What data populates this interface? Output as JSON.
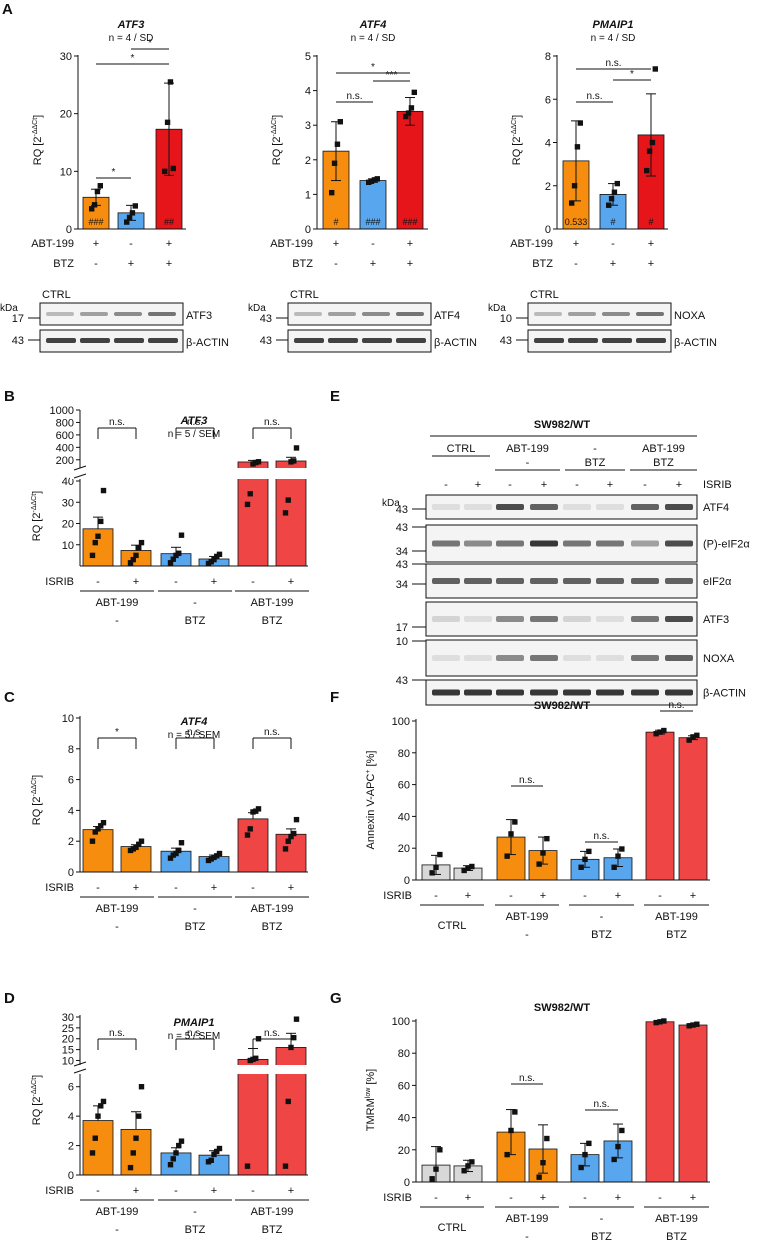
{
  "colors": {
    "orange": "#f78d0f",
    "blue": "#58a6ee",
    "red": "#f04545",
    "red_dark": "#e6151a",
    "grey": "#d8d8d8",
    "ink": "#111111"
  },
  "texts": {
    "panel_A": "A",
    "panel_B": "B",
    "panel_C": "C",
    "panel_D": "D",
    "panel_E": "E",
    "panel_F": "F",
    "panel_G": "G",
    "ylabel_rq": "RQ [2-ΔΔCt]",
    "ylabel_annexin": "Annexin V-APC+ [%]",
    "ylabel_tmrm": "TMRMlow [%]",
    "abt199": "ABT-199",
    "btz": "BTZ",
    "isrib": "ISRIB",
    "ctrl": "CTRL",
    "dash": "-",
    "plus": "+",
    "sw982": "SW982/WT",
    "kda": "kDa",
    "beta_actin": "β-ACTIN",
    "ns": "n.s.",
    "star": "*",
    "triple_star": "***",
    "hash1": "#",
    "hash2": "##",
    "hash3": "###",
    "p_0533": "0.533"
  },
  "blots_A": [
    {
      "ctrl": "CTRL",
      "mw_top": "17",
      "mw_actin": "43",
      "target": "ATF3",
      "actin": "β-ACTIN",
      "kda": "kDa"
    },
    {
      "ctrl": "CTRL",
      "mw_top": "43",
      "mw_actin": "43",
      "target": "ATF4",
      "actin": "β-ACTIN",
      "kda": "kDa"
    },
    {
      "ctrl": "CTRL",
      "mw_top": "10",
      "mw_actin": "43",
      "target": "NOXA",
      "actin": "β-ACTIN",
      "kda": "kDa"
    }
  ],
  "blot_E": {
    "title": "SW982/WT",
    "groups": [
      {
        "top": "CTRL",
        "bottom": ""
      },
      {
        "top": "ABT-199",
        "bottom": "-"
      },
      {
        "top": "-",
        "bottom": "BTZ"
      },
      {
        "top": "ABT-199",
        "bottom": "BTZ"
      }
    ],
    "isrib": [
      "-",
      "+",
      "-",
      "+",
      "-",
      "+",
      "-",
      "+"
    ],
    "isrib_label": "ISRIB",
    "kda": "kDa",
    "rows": [
      {
        "label": "ATF4",
        "markers": [
          "43"
        ]
      },
      {
        "label": "(P)-eIF2α",
        "markers": [
          "43",
          "34"
        ]
      },
      {
        "label": "eIF2α",
        "markers": [
          "43",
          "34"
        ]
      },
      {
        "label": "ATF3",
        "markers": [
          "17"
        ]
      },
      {
        "label": "NOXA",
        "markers": [
          "10"
        ]
      },
      {
        "label": "β-ACTIN",
        "markers": [
          "43"
        ]
      }
    ]
  },
  "chart_data": [
    {
      "type": "bar",
      "panel": "A",
      "title": "ATF3",
      "subtitle": "n = 4 / SD",
      "ylabel": "RQ [2-ΔΔCt]",
      "ylim": [
        0,
        30
      ],
      "yticks": [
        0,
        10,
        20,
        30
      ],
      "row_labels": [
        "ABT-199",
        "BTZ"
      ],
      "conditions": [
        [
          "+",
          "-"
        ],
        [
          "-",
          "+"
        ],
        [
          "+",
          "+"
        ]
      ],
      "values": [
        5.5,
        2.8,
        17.3
      ],
      "errors": [
        1.4,
        1.3,
        8.0
      ],
      "points": [
        [
          3.5,
          4.2,
          6.5,
          7.5
        ],
        [
          1.2,
          2.0,
          2.8,
          4.0
        ],
        [
          10.0,
          18.5,
          25.5,
          10.5
        ]
      ],
      "labels_in_bar": [
        "###",
        "",
        "##"
      ],
      "significance": [
        {
          "from": 0,
          "to": 1,
          "label": "*"
        },
        {
          "from": 0,
          "to": 2,
          "label": "*"
        },
        {
          "from": 1,
          "to": 2,
          "label": "*"
        }
      ]
    },
    {
      "type": "bar",
      "panel": "A",
      "title": "ATF4",
      "subtitle": "n = 4 / SD",
      "ylabel": "RQ [2-ΔΔCt]",
      "ylim": [
        0,
        5
      ],
      "yticks": [
        0,
        1,
        2,
        3,
        4,
        5
      ],
      "row_labels": [
        "ABT-199",
        "BTZ"
      ],
      "conditions": [
        [
          "+",
          "-"
        ],
        [
          "-",
          "+"
        ],
        [
          "+",
          "+"
        ]
      ],
      "values": [
        2.25,
        1.4,
        3.4
      ],
      "errors": [
        0.85,
        0.05,
        0.4
      ],
      "points": [
        [
          1.05,
          1.9,
          2.45,
          3.1
        ],
        [
          1.35,
          1.38,
          1.42,
          1.45
        ],
        [
          3.25,
          3.35,
          3.5,
          3.95
        ]
      ],
      "labels_in_bar": [
        "#",
        "###",
        "###"
      ],
      "significance": [
        {
          "from": 0,
          "to": 1,
          "label": "n.s."
        },
        {
          "from": 0,
          "to": 2,
          "label": "*"
        },
        {
          "from": 1,
          "to": 2,
          "label": "***"
        }
      ]
    },
    {
      "type": "bar",
      "panel": "A",
      "title": "PMAIP1",
      "subtitle": "n = 4 / SD",
      "ylabel": "RQ [2-ΔΔCt]",
      "ylim": [
        0,
        8
      ],
      "yticks": [
        0,
        2,
        4,
        6,
        8
      ],
      "row_labels": [
        "ABT-199",
        "BTZ"
      ],
      "conditions": [
        [
          "+",
          "-"
        ],
        [
          "-",
          "+"
        ],
        [
          "+",
          "+"
        ]
      ],
      "values": [
        3.15,
        1.6,
        4.35
      ],
      "errors": [
        1.85,
        0.5,
        1.9
      ],
      "points": [
        [
          1.2,
          2.0,
          3.8,
          4.9
        ],
        [
          1.1,
          1.4,
          1.7,
          2.1
        ],
        [
          2.7,
          3.6,
          4.0,
          7.4
        ]
      ],
      "labels_in_bar": [
        "0.533",
        "#",
        "#"
      ],
      "significance": [
        {
          "from": 0,
          "to": 1,
          "label": "n.s."
        },
        {
          "from": 0,
          "to": 2,
          "label": "n.s."
        },
        {
          "from": 1,
          "to": 2,
          "label": "*"
        }
      ]
    },
    {
      "type": "bar",
      "panel": "B",
      "title": "ATF3",
      "subtitle": "n = 5 / SEM",
      "ylabel": "RQ [2-ΔΔCt]",
      "ylim": [
        0,
        1000
      ],
      "axis_break": [
        40,
        100
      ],
      "yticks": [
        10,
        20,
        30,
        40,
        200,
        400,
        600,
        800,
        1000
      ],
      "row_labels": [
        "ISRIB"
      ],
      "isrib": [
        "-",
        "+",
        "-",
        "+",
        "-",
        "+"
      ],
      "groups": [
        {
          "top": "ABT-199",
          "bottom": "-"
        },
        {
          "top": "-",
          "bottom": "BTZ"
        },
        {
          "top": "ABT-199",
          "bottom": "BTZ"
        }
      ],
      "values": [
        17.5,
        7.3,
        5.8,
        3.3,
        165,
        180
      ],
      "errors": [
        5.5,
        2.5,
        3.0,
        1.2,
        25,
        60
      ],
      "points": [
        [
          5,
          11,
          14,
          21,
          35.5
        ],
        [
          1.5,
          3,
          5,
          8.5,
          11
        ],
        [
          1.5,
          3.2,
          5,
          6,
          14.5
        ],
        [
          1.2,
          2,
          3,
          4.5,
          5.5
        ],
        [
          29,
          34,
          133,
          155,
          168
        ],
        [
          25,
          31,
          166,
          182,
          390
        ]
      ],
      "significance": [
        {
          "from": 0,
          "to": 1,
          "label": "n.s."
        },
        {
          "from": 2,
          "to": 3,
          "label": "n.s."
        },
        {
          "from": 4,
          "to": 5,
          "label": "n.s."
        }
      ]
    },
    {
      "type": "bar",
      "panel": "C",
      "title": "ATF4",
      "subtitle": "n = 5 / SEM",
      "ylabel": "RQ [2-ΔΔCt]",
      "ylim": [
        0,
        10
      ],
      "yticks": [
        0,
        2,
        4,
        6,
        8,
        10
      ],
      "row_labels": [
        "ISRIB"
      ],
      "isrib": [
        "-",
        "+",
        "-",
        "+",
        "-",
        "+"
      ],
      "groups": [
        {
          "top": "ABT-199",
          "bottom": "-"
        },
        {
          "top": "-",
          "bottom": "BTZ"
        },
        {
          "top": "ABT-199",
          "bottom": "BTZ"
        }
      ],
      "values": [
        2.75,
        1.65,
        1.35,
        1.0,
        3.45,
        2.45
      ],
      "errors": [
        0.2,
        0.12,
        0.2,
        0.1,
        0.4,
        0.35
      ],
      "points": [
        [
          2.0,
          2.6,
          2.8,
          3.0,
          3.2
        ],
        [
          1.4,
          1.5,
          1.6,
          1.8,
          2.0
        ],
        [
          0.9,
          1.1,
          1.2,
          1.4,
          1.9
        ],
        [
          0.75,
          0.85,
          0.95,
          1.05,
          1.2
        ],
        [
          2.4,
          2.8,
          3.9,
          3.95,
          4.1
        ],
        [
          1.5,
          2.0,
          2.3,
          2.5,
          3.4
        ]
      ],
      "significance": [
        {
          "from": 0,
          "to": 1,
          "label": "*"
        },
        {
          "from": 2,
          "to": 3,
          "label": "n.s."
        },
        {
          "from": 4,
          "to": 5,
          "label": "n.s."
        }
      ]
    },
    {
      "type": "bar",
      "panel": "D",
      "title": "PMAIP1",
      "subtitle": "n = 5 / SEM",
      "ylabel": "RQ [2-ΔΔCt]",
      "ylim": [
        0,
        30
      ],
      "axis_break": [
        7,
        7
      ],
      "yticks": [
        0,
        2,
        4,
        6,
        10,
        15,
        20,
        25,
        30
      ],
      "row_labels": [
        "ISRIB"
      ],
      "isrib": [
        "-",
        "+",
        "-",
        "+",
        "-",
        "+"
      ],
      "groups": [
        {
          "top": "ABT-199",
          "bottom": "-"
        },
        {
          "top": "-",
          "bottom": "BTZ"
        },
        {
          "top": "ABT-199",
          "bottom": "BTZ"
        }
      ],
      "values": [
        3.7,
        3.1,
        1.5,
        1.35,
        10.5,
        16.0
      ],
      "errors": [
        1.0,
        1.2,
        0.35,
        0.3,
        5.0,
        6.5
      ],
      "points": [
        [
          1.5,
          2.5,
          4.0,
          4.7,
          5.0
        ],
        [
          0.5,
          1.5,
          2.5,
          4.0,
          6.0
        ],
        [
          0.7,
          1.1,
          1.5,
          2.0,
          2.3
        ],
        [
          0.9,
          1.0,
          1.4,
          1.6,
          1.8
        ],
        [
          0.6,
          10.0,
          10.5,
          11,
          20
        ],
        [
          0.6,
          5.0,
          16.0,
          20.5,
          29
        ]
      ],
      "significance": [
        {
          "from": 0,
          "to": 1,
          "label": "n.s."
        },
        {
          "from": 2,
          "to": 3,
          "label": "n.s."
        },
        {
          "from": 4,
          "to": 5,
          "label": "n.s."
        }
      ]
    },
    {
      "type": "bar",
      "panel": "F",
      "title": "SW982/WT",
      "ylabel": "Annexin V-APC+ [%]",
      "ylim": [
        0,
        100
      ],
      "yticks": [
        0,
        20,
        40,
        60,
        80,
        100
      ],
      "row_labels": [
        "ISRIB"
      ],
      "isrib": [
        "-",
        "+",
        "-",
        "+",
        "-",
        "+",
        "-",
        "+"
      ],
      "groups": [
        {
          "top": "CTRL",
          "bottom": ""
        },
        {
          "top": "ABT-199",
          "bottom": "-"
        },
        {
          "top": "-",
          "bottom": "BTZ"
        },
        {
          "top": "ABT-199",
          "bottom": "BTZ"
        }
      ],
      "values": [
        9.5,
        7.5,
        27.0,
        18.5,
        13.0,
        14.0,
        93.0,
        89.5
      ],
      "errors": [
        6.0,
        1.5,
        11.0,
        8.5,
        5.0,
        5.5,
        1.2,
        1.2
      ],
      "points": [
        [
          4.5,
          8,
          16
        ],
        [
          6,
          7.5,
          8.5
        ],
        [
          15,
          29,
          36.5
        ],
        [
          10,
          17,
          26
        ],
        [
          8,
          13,
          18
        ],
        [
          8,
          15,
          19.5
        ],
        [
          92,
          93,
          94
        ],
        [
          88,
          90,
          91
        ]
      ],
      "significance": [
        {
          "from": 2,
          "to": 3,
          "label": "n.s."
        },
        {
          "from": 4,
          "to": 5,
          "label": "n.s."
        },
        {
          "from": 6,
          "to": 7,
          "label": "n.s."
        }
      ]
    },
    {
      "type": "bar",
      "panel": "G",
      "title": "SW982/WT",
      "ylabel": "TMRMlow [%]",
      "ylim": [
        0,
        100
      ],
      "yticks": [
        0,
        20,
        40,
        60,
        80,
        100
      ],
      "row_labels": [
        "ISRIB"
      ],
      "isrib": [
        "-",
        "+",
        "-",
        "+",
        "-",
        "+",
        "-",
        "+"
      ],
      "groups": [
        {
          "top": "CTRL",
          "bottom": ""
        },
        {
          "top": "ABT-199",
          "bottom": "-"
        },
        {
          "top": "-",
          "bottom": "BTZ"
        },
        {
          "top": "ABT-199",
          "bottom": "BTZ"
        }
      ],
      "values": [
        10.5,
        10.0,
        31.0,
        20.5,
        17.0,
        25.5,
        99.5,
        97.5
      ],
      "errors": [
        11.5,
        3.5,
        14.0,
        15.0,
        7.0,
        10.5,
        0.5,
        0.8
      ],
      "points": [
        [
          2,
          8,
          20
        ],
        [
          7,
          10,
          12.5
        ],
        [
          17,
          32,
          43.5
        ],
        [
          3,
          12,
          27
        ],
        [
          9,
          17,
          24
        ],
        [
          14,
          22,
          32
        ],
        [
          99,
          99.5,
          100
        ],
        [
          97,
          97.5,
          98
        ]
      ],
      "significance": [
        {
          "from": 2,
          "to": 3,
          "label": "n.s."
        },
        {
          "from": 4,
          "to": 5,
          "label": "n.s."
        }
      ]
    }
  ]
}
